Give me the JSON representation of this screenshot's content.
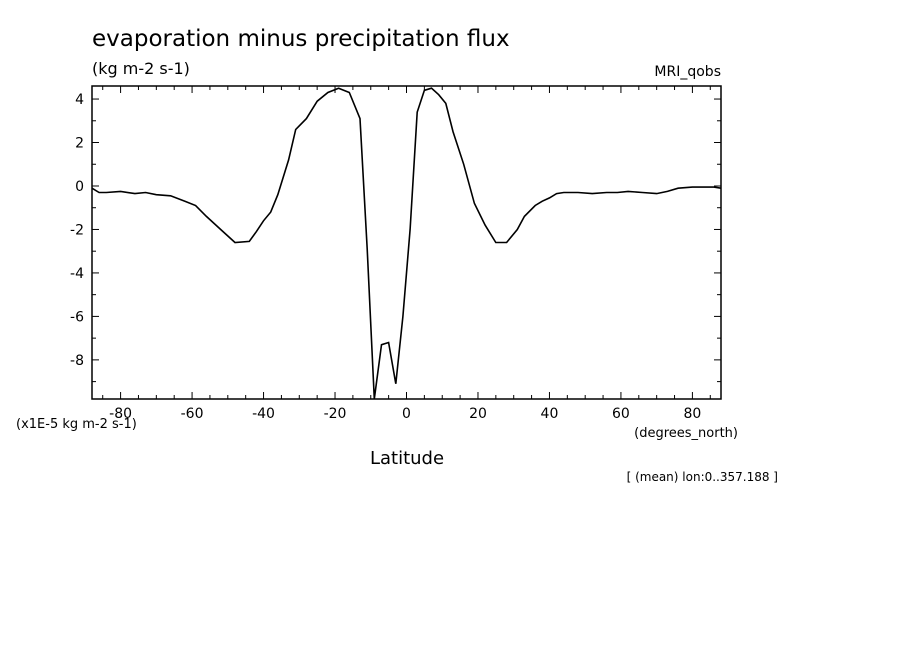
{
  "chart_data": {
    "type": "line",
    "title": "evaporation minus precipitation flux",
    "units": "(kg m-2 s-1)",
    "source": "MRI_qobs",
    "xlabel": "Latitude",
    "xunits": "(degrees_north)",
    "yscale_label": "(x1E-5 kg m-2 s-1)",
    "footnote": "[ (mean) lon:0..357.188 ]",
    "xlim": [
      -88,
      88
    ],
    "ylim": [
      -9.8,
      4.6
    ],
    "xticks": [
      -80,
      -60,
      -40,
      -20,
      0,
      20,
      40,
      60,
      80
    ],
    "xtick_labels": [
      "-80",
      "-60",
      "-40",
      "-20",
      "0",
      "20",
      "40",
      "60",
      "80"
    ],
    "yticks": [
      -8,
      -6,
      -4,
      -2,
      0,
      2,
      4
    ],
    "ytick_labels": [
      "-8",
      "-6",
      "-4",
      "-2",
      "0",
      "2",
      "4"
    ],
    "grid": false,
    "line_color": "#000000",
    "series": [
      {
        "x": [
          -88,
          -86,
          -84,
          -80,
          -76,
          -73,
          -70,
          -66,
          -62,
          -59,
          -56,
          -52,
          -48,
          -44,
          -42,
          -40,
          -38,
          -36,
          -33,
          -31,
          -28,
          -25,
          -22,
          -19,
          -16,
          -13,
          -11,
          -9,
          -7,
          -5,
          -3,
          -1,
          1,
          3,
          5,
          7,
          9,
          11,
          13,
          16,
          19,
          22,
          25,
          28,
          31,
          33,
          36,
          38,
          40,
          42,
          44,
          48,
          52,
          56,
          59,
          62,
          66,
          70,
          73,
          76,
          80,
          84,
          86,
          88
        ],
        "y": [
          -0.1,
          -0.3,
          -0.3,
          -0.25,
          -0.35,
          -0.3,
          -0.4,
          -0.45,
          -0.7,
          -0.9,
          -1.4,
          -2.0,
          -2.6,
          -2.55,
          -2.1,
          -1.6,
          -1.2,
          -0.4,
          1.2,
          2.6,
          3.1,
          3.9,
          4.3,
          4.5,
          4.3,
          3.1,
          -2.9,
          -9.8,
          -7.3,
          -7.2,
          -9.1,
          -6.0,
          -2.0,
          3.4,
          4.4,
          4.5,
          4.2,
          3.8,
          2.5,
          1.0,
          -0.8,
          -1.8,
          -2.6,
          -2.6,
          -2.0,
          -1.4,
          -0.9,
          -0.7,
          -0.55,
          -0.35,
          -0.3,
          -0.3,
          -0.35,
          -0.3,
          -0.3,
          -0.25,
          -0.3,
          -0.35,
          -0.25,
          -0.1,
          -0.05,
          -0.05,
          -0.05,
          -0.1
        ]
      }
    ]
  }
}
